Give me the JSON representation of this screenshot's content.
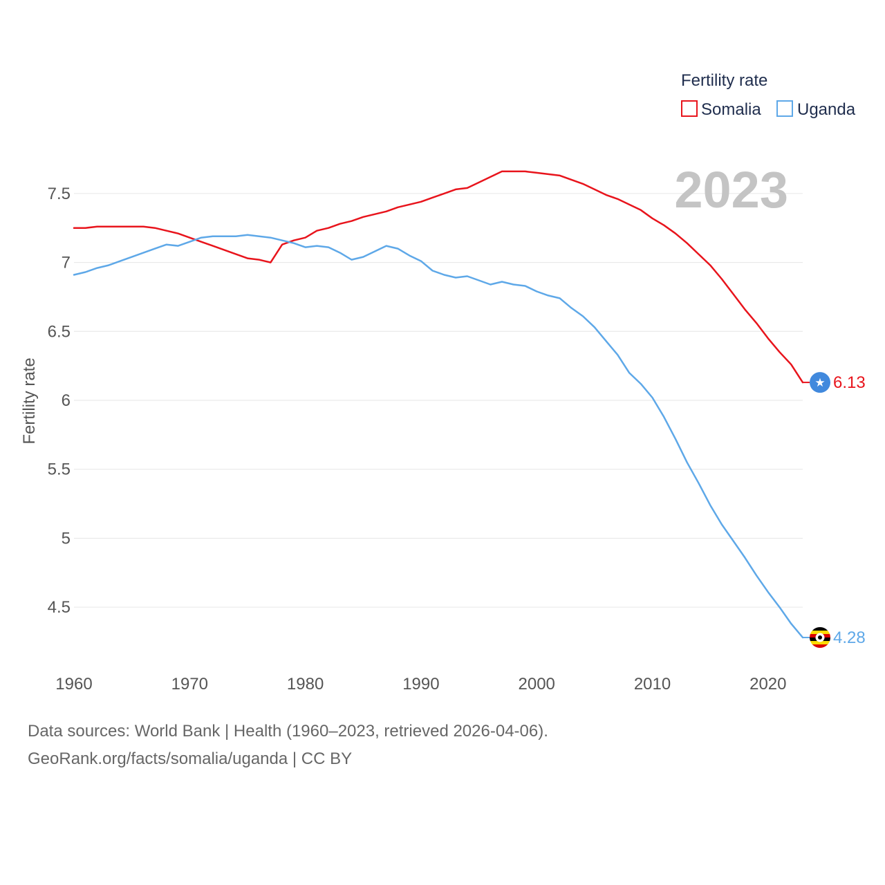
{
  "chart_data": {
    "type": "line",
    "title": "",
    "year_label": "2023",
    "xlabel": "",
    "ylabel": "Fertility rate",
    "xlim": [
      1960,
      2023
    ],
    "ylim": [
      4.2,
      7.75
    ],
    "x_ticks": [
      "1960",
      "1970",
      "1980",
      "1990",
      "2000",
      "2010",
      "2020"
    ],
    "y_ticks": [
      "4.5",
      "5",
      "5.5",
      "6",
      "6.5",
      "7",
      "7.5"
    ],
    "grid": true,
    "legend": {
      "title": "Fertility rate",
      "position": "top-right"
    },
    "x": [
      1960,
      1961,
      1962,
      1963,
      1964,
      1965,
      1966,
      1967,
      1968,
      1969,
      1970,
      1971,
      1972,
      1973,
      1974,
      1975,
      1976,
      1977,
      1978,
      1979,
      1980,
      1981,
      1982,
      1983,
      1984,
      1985,
      1986,
      1987,
      1988,
      1989,
      1990,
      1991,
      1992,
      1993,
      1994,
      1995,
      1996,
      1997,
      1998,
      1999,
      2000,
      2001,
      2002,
      2003,
      2004,
      2005,
      2006,
      2007,
      2008,
      2009,
      2010,
      2011,
      2012,
      2013,
      2014,
      2015,
      2016,
      2017,
      2018,
      2019,
      2020,
      2021,
      2022,
      2023
    ],
    "series": [
      {
        "name": "Somalia",
        "color": "#e8141c",
        "end_label": "6.13",
        "end_icon": "somalia-flag-icon",
        "values": [
          7.25,
          7.25,
          7.26,
          7.26,
          7.26,
          7.26,
          7.26,
          7.25,
          7.23,
          7.21,
          7.18,
          7.15,
          7.12,
          7.09,
          7.06,
          7.03,
          7.02,
          7.0,
          7.13,
          7.16,
          7.18,
          7.23,
          7.25,
          7.28,
          7.3,
          7.33,
          7.35,
          7.37,
          7.4,
          7.42,
          7.44,
          7.47,
          7.5,
          7.53,
          7.54,
          7.58,
          7.62,
          7.66,
          7.66,
          7.66,
          7.65,
          7.64,
          7.63,
          7.6,
          7.57,
          7.53,
          7.49,
          7.46,
          7.42,
          7.38,
          7.32,
          7.27,
          7.21,
          7.14,
          7.06,
          6.98,
          6.88,
          6.77,
          6.66,
          6.56,
          6.45,
          6.35,
          6.26,
          6.13
        ]
      },
      {
        "name": "Uganda",
        "color": "#5ea8e8",
        "end_label": "4.28",
        "end_icon": "uganda-flag-icon",
        "values": [
          6.91,
          6.93,
          6.96,
          6.98,
          7.01,
          7.04,
          7.07,
          7.1,
          7.13,
          7.12,
          7.15,
          7.18,
          7.19,
          7.19,
          7.19,
          7.2,
          7.19,
          7.18,
          7.16,
          7.14,
          7.11,
          7.12,
          7.11,
          7.07,
          7.02,
          7.04,
          7.08,
          7.12,
          7.1,
          7.05,
          7.01,
          6.94,
          6.91,
          6.89,
          6.9,
          6.87,
          6.84,
          6.86,
          6.84,
          6.83,
          6.79,
          6.76,
          6.74,
          6.67,
          6.61,
          6.53,
          6.43,
          6.33,
          6.2,
          6.12,
          6.02,
          5.88,
          5.72,
          5.55,
          5.4,
          5.24,
          5.1,
          4.98,
          4.86,
          4.73,
          4.61,
          4.5,
          4.38,
          4.28
        ]
      }
    ]
  },
  "source": {
    "line1": "Data sources: World Bank | Health (1960–2023, retrieved 2026-04-06).",
    "line2": "GeoRank.org/facts/somalia/uganda | CC BY"
  }
}
